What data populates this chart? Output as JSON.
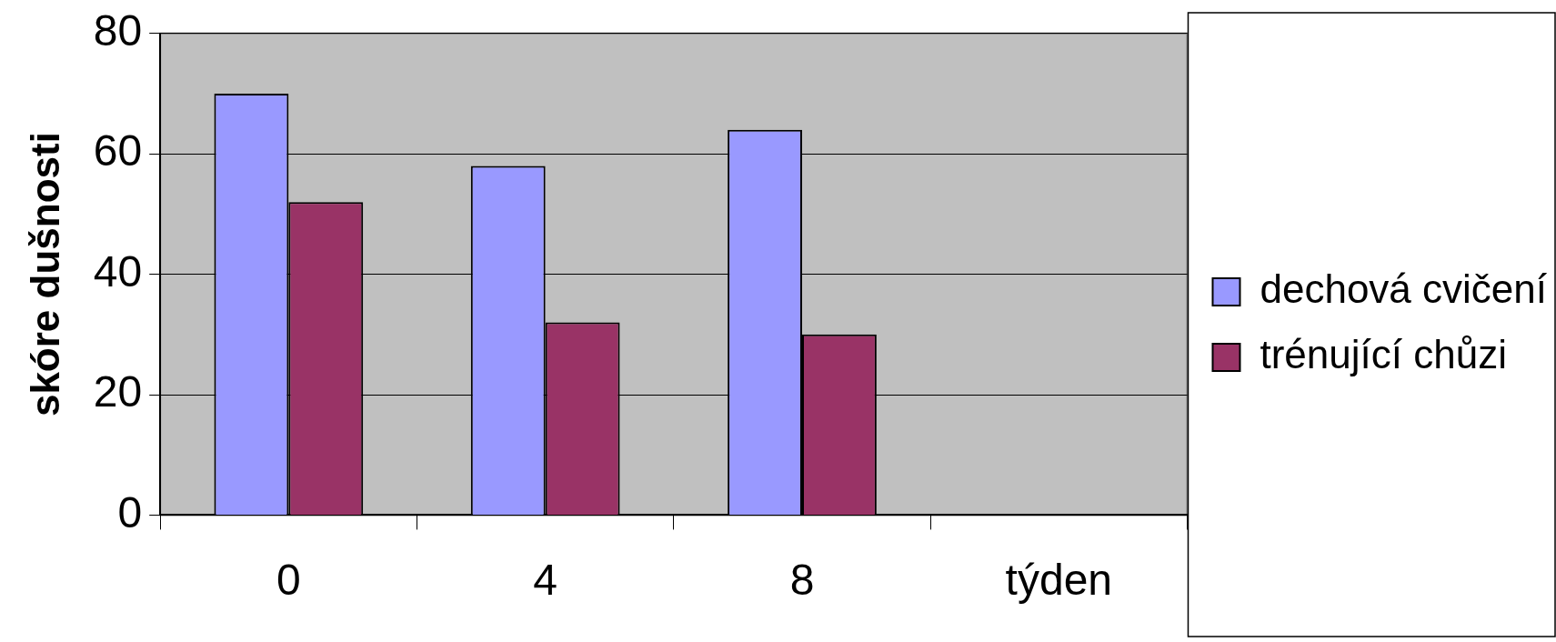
{
  "chart_data": {
    "type": "bar",
    "ylabel": "skóre dušnosti",
    "categories": [
      "0",
      "4",
      "8",
      "týden"
    ],
    "series": [
      {
        "name": "dechová cvičení",
        "color": "#9999ff",
        "values": [
          70,
          58,
          64,
          null
        ]
      },
      {
        "name": "trénující chůzi",
        "color": "#993366",
        "values": [
          52,
          32,
          30,
          null
        ]
      }
    ],
    "ylim": [
      0,
      80
    ],
    "yticks": [
      0,
      20,
      40,
      60,
      80
    ],
    "grid": "y",
    "legend": "right"
  }
}
